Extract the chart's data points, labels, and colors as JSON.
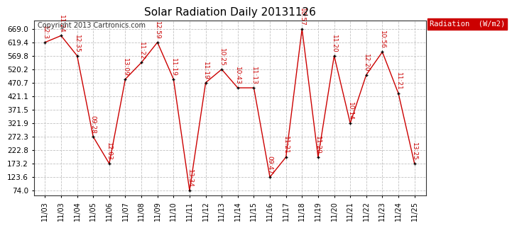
{
  "title": "Solar Radiation Daily 20131126",
  "copyright": "Copyright 2013 Cartronics.com",
  "legend_label": "Radiation  (W/m2)",
  "legend_bg": "#cc0000",
  "legend_fg": "#ffffff",
  "x_labels": [
    "11/03",
    "11/03",
    "11/04",
    "11/05",
    "11/06",
    "11/07",
    "11/08",
    "11/09",
    "11/10",
    "11/11",
    "11/12",
    "11/13",
    "11/14",
    "11/15",
    "11/16",
    "11/17",
    "11/18",
    "11/19",
    "11/20",
    "11/21",
    "11/22",
    "11/23",
    "11/24",
    "11/25"
  ],
  "y_values": [
    619.4,
    644.0,
    570.0,
    272.0,
    173.2,
    484.0,
    545.0,
    619.4,
    484.0,
    74.0,
    471.0,
    520.0,
    452.0,
    452.0,
    123.6,
    197.0,
    669.0,
    197.0,
    570.0,
    321.9,
    500.0,
    584.0,
    431.0,
    173.2
  ],
  "time_labels": [
    "12:3",
    "11:24",
    "12:35",
    "09:28",
    "12:03",
    "13:09",
    "11:22",
    "12:59",
    "11:19",
    "13:34",
    "11:19",
    "10:25",
    "10:43",
    "11:13",
    "09:47",
    "11:21",
    "10:57",
    "11:20",
    "11:20",
    "10:14",
    "12:20",
    "10:56",
    "11:21",
    "13:25"
  ],
  "yticks": [
    74.0,
    123.6,
    173.2,
    222.8,
    272.3,
    321.9,
    371.5,
    421.1,
    470.7,
    520.2,
    569.8,
    619.4,
    669.0
  ],
  "line_color": "#cc0000",
  "marker_color": "#000000",
  "bg_color": "#ffffff",
  "grid_color": "#bbbbbb",
  "text_color_red": "#cc0000",
  "annotation_fontsize": 6.5,
  "title_fontsize": 11,
  "copyright_fontsize": 7
}
